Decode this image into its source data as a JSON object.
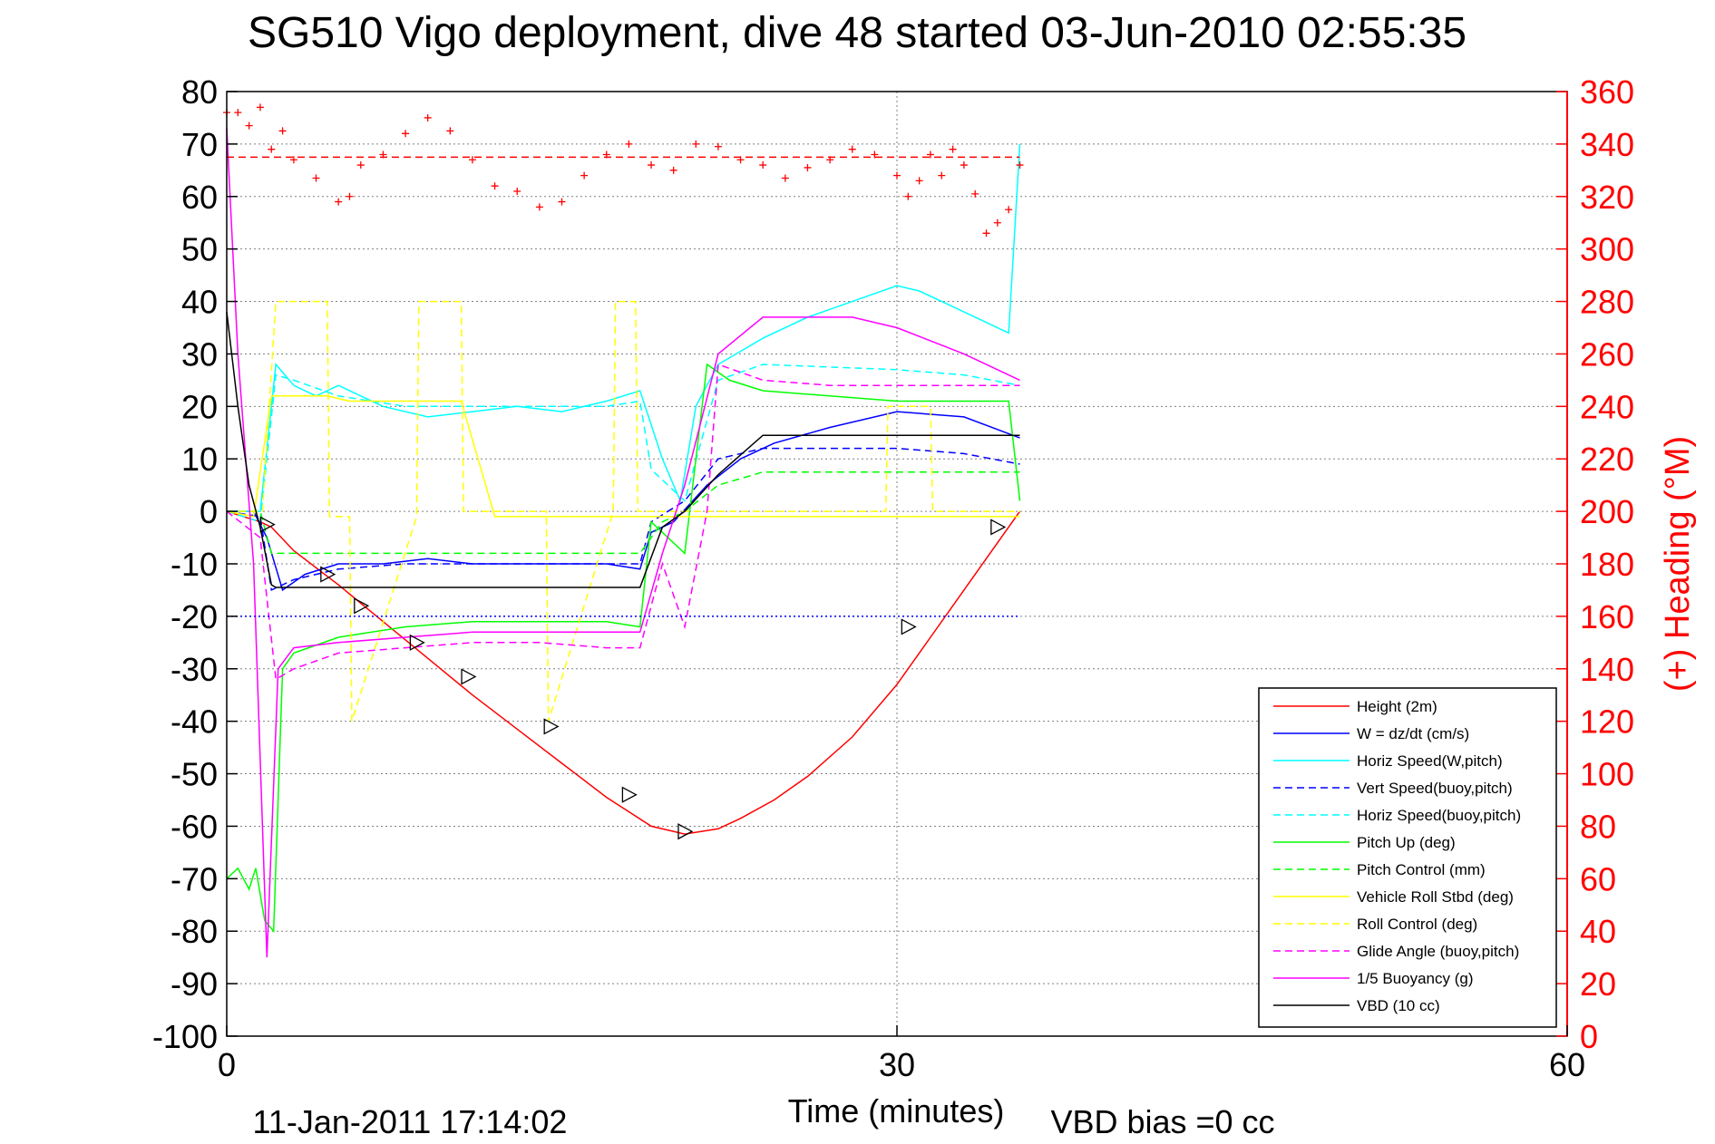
{
  "chart_data": {
    "type": "line",
    "title": "SG510 Vigo deployment, dive 48 started 03-Jun-2010 02:55:35",
    "xlabel": "Time (minutes)",
    "ylabel": "",
    "ylabel_right": "(+) Heading (°M)",
    "xlim": [
      0,
      60
    ],
    "ylim": [
      -100,
      80
    ],
    "ylim_right": [
      0,
      360
    ],
    "x_ticks": [
      0,
      30,
      60
    ],
    "y_ticks": [
      80,
      70,
      60,
      50,
      40,
      30,
      20,
      10,
      0,
      -10,
      -20,
      -30,
      -40,
      -50,
      -60,
      -70,
      -80,
      -90,
      -100
    ],
    "y_ticks_right": [
      360,
      340,
      320,
      300,
      280,
      260,
      240,
      220,
      200,
      180,
      160,
      140,
      120,
      100,
      80,
      60,
      40,
      20,
      0
    ],
    "grid": true,
    "legend_position": "bottom-right",
    "footer_left": "11-Jan-2011 17:14:02",
    "footer_right": "VBD bias =0 cc",
    "series": [
      {
        "name": "Height (2m)",
        "color": "#ff0000",
        "style": "solid",
        "x": [
          0,
          1.5,
          2,
          3,
          5,
          7,
          9,
          11,
          13,
          15,
          17,
          19,
          20.5,
          22,
          23,
          24.5,
          26,
          28,
          30,
          31.5,
          33,
          35.5
        ],
        "y": [
          0,
          -2,
          -3,
          -7.5,
          -14,
          -21,
          -28,
          -35,
          -41.5,
          -48,
          -54.5,
          -60,
          -61.5,
          -60.5,
          -58.5,
          -55,
          -50.5,
          -43,
          -33,
          -24,
          -15,
          0
        ]
      },
      {
        "name": "W = dz/dt (cm/s)",
        "color": "#0000ff",
        "style": "solid",
        "x": [
          0,
          1.2,
          1.8,
          2.5,
          3.5,
          5,
          7,
          9,
          11,
          13,
          15,
          17,
          18.5,
          19,
          20,
          21.5,
          23,
          24.5,
          27,
          30,
          33,
          35.5
        ],
        "y": [
          0,
          0,
          -5,
          -15,
          -12,
          -10,
          -10,
          -9,
          -10,
          -10,
          -10,
          -10,
          -11,
          -4,
          -2,
          5,
          10,
          13,
          16,
          19,
          18,
          14
        ]
      },
      {
        "name": "Horiz Speed(W,pitch)",
        "color": "#00ffff",
        "style": "solid",
        "x": [
          0,
          1.5,
          2.2,
          3,
          4,
          5,
          6,
          7,
          9,
          11,
          13,
          15,
          17,
          18.5,
          19.5,
          20.3,
          21,
          22,
          24,
          26,
          28,
          30,
          31,
          33,
          35,
          35.5
        ],
        "y": [
          0,
          0,
          28,
          24,
          22,
          24,
          22,
          20,
          18,
          19,
          20,
          19,
          21,
          23,
          10,
          2,
          20,
          28,
          33,
          37,
          40,
          43,
          42,
          38,
          34,
          70
        ]
      },
      {
        "name": "Vert Speed(buoy,pitch)",
        "color": "#0000ff",
        "style": "dashed",
        "x": [
          0,
          1.5,
          2,
          3,
          5,
          8,
          11,
          14,
          17,
          18.5,
          19,
          20.5,
          22,
          24,
          27,
          30,
          33,
          35.5
        ],
        "y": [
          0,
          -1,
          -15,
          -13,
          -11,
          -10,
          -10,
          -10,
          -10,
          -10,
          -2,
          2,
          10,
          12,
          12,
          12,
          11,
          9
        ]
      },
      {
        "name": "Horiz Speed(buoy,pitch)",
        "color": "#00ffff",
        "style": "dashed",
        "x": [
          0,
          1.5,
          2.2,
          3,
          5,
          8,
          11,
          14,
          17,
          18.5,
          19,
          20.5,
          22,
          24,
          27,
          30,
          33,
          35.5
        ],
        "y": [
          0,
          -2,
          26,
          25,
          22,
          20,
          20,
          20,
          20,
          21,
          8,
          2,
          25,
          28,
          27.5,
          27,
          26,
          24
        ]
      },
      {
        "name": "Pitch Up (deg)",
        "color": "#00ff00",
        "style": "solid",
        "x": [
          0,
          0.5,
          1,
          1.3,
          1.7,
          2.1,
          2.5,
          3,
          5,
          8,
          11,
          14,
          17,
          18.5,
          19,
          20.5,
          21.5,
          22.5,
          24,
          27,
          30,
          33,
          35,
          35.5
        ],
        "y": [
          -70,
          -68,
          -72,
          -68,
          -78,
          -80,
          -30,
          -27,
          -24,
          -22,
          -21,
          -21,
          -21,
          -22,
          -2,
          -8,
          28,
          25,
          23,
          22,
          21,
          21,
          21,
          2
        ]
      },
      {
        "name": "Pitch Control (mm)",
        "color": "#00ff00",
        "style": "dashed",
        "x": [
          0,
          1.5,
          2,
          8,
          14,
          18.5,
          19.5,
          20.5,
          22,
          24,
          30,
          35.5
        ],
        "y": [
          0,
          0,
          -8,
          -8,
          -8,
          -8,
          -2,
          0,
          5,
          7.5,
          7.5,
          7.5
        ]
      },
      {
        "name": "Vehicle Roll Stbd (deg)",
        "color": "#ffff00",
        "style": "solid",
        "x": [
          0,
          1.2,
          2,
          4.5,
          5.5,
          7,
          8.5,
          10.5,
          12,
          14.5,
          16.5,
          17.5,
          19.5,
          21,
          25,
          30,
          35.5
        ],
        "y": [
          0,
          -1,
          22,
          22,
          21,
          21,
          21,
          21,
          -1,
          -1,
          -1,
          -1,
          -1,
          -1,
          -1,
          -1,
          -1
        ]
      },
      {
        "name": "Roll Control (deg)",
        "color": "#ffff00",
        "style": "dashed",
        "x": [
          0,
          1.6,
          2.2,
          4.5,
          4.6,
          5.5,
          5.6,
          8.5,
          8.6,
          10.5,
          10.6,
          14.3,
          14.4,
          17.3,
          17.4,
          18.3,
          18.4,
          29.5,
          29.6,
          31.5,
          31.6,
          35.5
        ],
        "y": [
          0,
          0,
          40,
          40,
          -1,
          -1,
          -40,
          -1,
          40,
          40,
          0,
          0,
          -40,
          0,
          40,
          40,
          0,
          0,
          20,
          20,
          0,
          0
        ]
      },
      {
        "name": "Glide Angle (buoy,pitch)",
        "color": "#ff00ff",
        "style": "dashed",
        "x": [
          0,
          1.5,
          2.2,
          3,
          5,
          8,
          11,
          14,
          17,
          18.5,
          19.5,
          20.5,
          21.5,
          22,
          24,
          27,
          30,
          33,
          35.5
        ],
        "y": [
          0,
          -5,
          -32,
          -30,
          -27,
          -26,
          -25,
          -25,
          -26,
          -26,
          -10,
          -22,
          0,
          28,
          25,
          24,
          24,
          24,
          24
        ]
      },
      {
        "name": "1/5 Buoyancy (g)",
        "color": "#ff00ff",
        "style": "solid",
        "x": [
          0,
          0.5,
          1.2,
          1.8,
          2.3,
          3,
          5,
          8,
          11,
          14,
          17,
          18.5,
          19.5,
          20.5,
          22,
          24,
          28,
          30,
          33,
          35.5
        ],
        "y": [
          73,
          30,
          -10,
          -85,
          -30,
          -26,
          -25,
          -24,
          -23,
          -23,
          -23,
          -23,
          -8,
          5,
          30,
          37,
          37,
          35,
          30,
          25
        ]
      },
      {
        "name": "VBD (10 cc)",
        "color": "#000000",
        "style": "solid",
        "x": [
          0,
          0.5,
          1,
          1.5,
          2,
          2.2,
          5,
          10,
          15,
          18.5,
          19.5,
          20.5,
          22,
          24,
          27,
          30,
          33,
          35.5
        ],
        "y": [
          38,
          20,
          5,
          -3,
          -14,
          -14.5,
          -14.5,
          -14.5,
          -14.5,
          -14.5,
          -3,
          0,
          7,
          14.5,
          14.5,
          14.5,
          14.5,
          14.5
        ]
      },
      {
        "name": "",
        "color": "#ff0000",
        "style": "markers-plus",
        "axis": "right",
        "x": [
          0,
          0.5,
          1,
          1.5,
          2,
          2.5,
          3,
          4,
          5,
          5.5,
          6,
          7,
          8,
          9,
          10,
          11,
          12,
          13,
          14,
          15,
          16,
          17,
          18,
          19,
          20,
          21,
          22,
          23,
          24,
          25,
          26,
          27,
          28,
          29,
          30,
          30.5,
          31,
          31.5,
          32,
          32.5,
          33,
          33.5,
          34,
          34.5,
          35,
          35.5
        ],
        "y": [
          352,
          352,
          347,
          354,
          338,
          345,
          334,
          327,
          318,
          320,
          332,
          336,
          344,
          350,
          345,
          334,
          324,
          322,
          316,
          318,
          328,
          336,
          340,
          332,
          330,
          340,
          339,
          334,
          332,
          327,
          331,
          334,
          338,
          336,
          328,
          320,
          326,
          336,
          328,
          338,
          332,
          321,
          306,
          310,
          315,
          332
        ]
      },
      {
        "name": "",
        "color": "#ff0000",
        "style": "dashed",
        "axis": "right",
        "x": [
          0,
          35.5
        ],
        "y": [
          335,
          335
        ]
      },
      {
        "name": "",
        "color": "#000000",
        "style": "markers-triangle",
        "x": [
          1.8,
          4.5,
          6,
          8.5,
          10.8,
          14.5,
          18,
          20.5,
          30.5,
          34.5
        ],
        "y": [
          -2.5,
          -12,
          -18,
          -25,
          -31.5,
          -41,
          -54,
          -61,
          -22,
          -3
        ]
      },
      {
        "name": "",
        "color": "#0000ff",
        "style": "dotted",
        "x": [
          0,
          35.5
        ],
        "y": [
          -20,
          -20
        ]
      }
    ]
  }
}
